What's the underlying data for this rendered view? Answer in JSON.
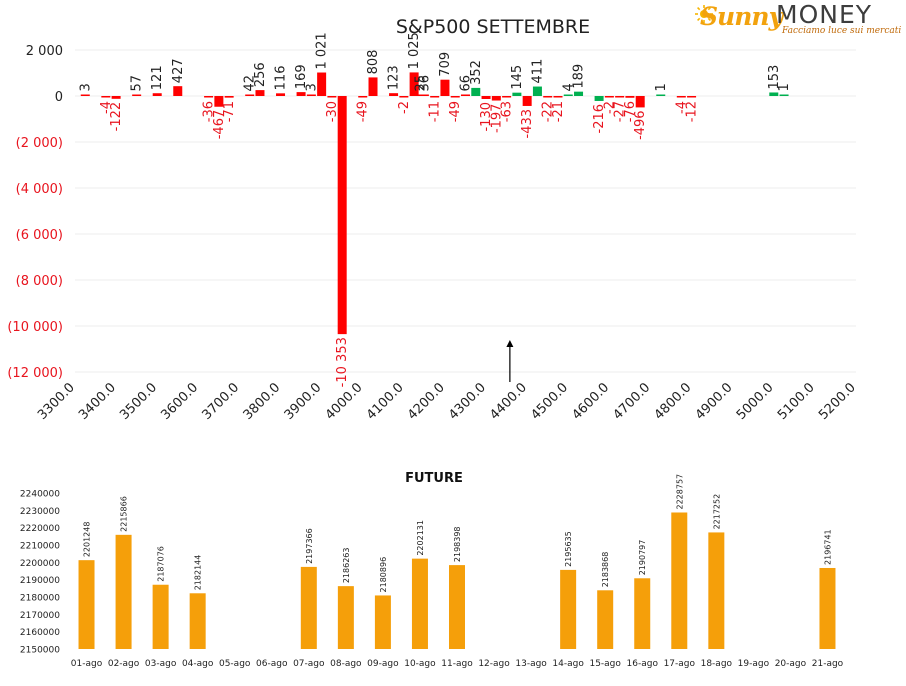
{
  "logo": {
    "brand_left": "Sunny",
    "brand_right": "MONEY",
    "tagline": "Facciamo luce sui mercati"
  },
  "colors": {
    "positive_top": "#ff0000",
    "negative_top": "#ff0000",
    "green_bar": "#00b050",
    "negative_label": "#e8141e",
    "future_bar": "#f59f0a",
    "text": "#222222"
  },
  "chart_data": [
    {
      "type": "bar",
      "title": "S&P500 SETTEMBRE",
      "xlabel": "",
      "ylabel": "",
      "ylim": [
        -12000,
        2000
      ],
      "yticks": [
        {
          "value": 2000,
          "label": "2 000"
        },
        {
          "value": 0,
          "label": "0"
        },
        {
          "value": -2000,
          "label": "(2 000)"
        },
        {
          "value": -4000,
          "label": "(4 000)"
        },
        {
          "value": -6000,
          "label": "(6 000)"
        },
        {
          "value": -8000,
          "label": "(8 000)"
        },
        {
          "value": -10000,
          "label": "(10 000)"
        },
        {
          "value": -12000,
          "label": "(12 000)"
        }
      ],
      "xlim": [
        3300,
        5200
      ],
      "xticks": [
        3300,
        3400,
        3500,
        3600,
        3700,
        3800,
        3900,
        4000,
        4100,
        4200,
        4300,
        4400,
        4500,
        4600,
        4700,
        4800,
        4900,
        5000,
        5100,
        5200
      ],
      "xtick_labels": [
        "3300.0",
        "3400.0",
        "3500.0",
        "3600.0",
        "3700.0",
        "3800.0",
        "3900.0",
        "4000.0",
        "4100.0",
        "4200.0",
        "4300.0",
        "4400.0",
        "4500.0",
        "4600.0",
        "4700.0",
        "4800.0",
        "4900.0",
        "5000.0",
        "5100.0",
        "5200.0"
      ],
      "grid": true,
      "annotation": "arrow at 4375 (current price marker)",
      "marker_x": 4375,
      "series": [
        {
          "values": [
            {
              "x": 3325,
              "y": 3,
              "label": "3"
            },
            {
              "x": 3375,
              "y": -4,
              "label": "-4"
            },
            {
              "x": 3400,
              "y": -122,
              "label": "-122"
            },
            {
              "x": 3450,
              "y": 57,
              "label": "57"
            },
            {
              "x": 3500,
              "y": 121,
              "label": "121"
            },
            {
              "x": 3550,
              "y": 427,
              "label": "427"
            },
            {
              "x": 3625,
              "y": -36,
              "label": "-36"
            },
            {
              "x": 3650,
              "y": -467,
              "label": "-467"
            },
            {
              "x": 3675,
              "y": -71,
              "label": "-71"
            },
            {
              "x": 3725,
              "y": 42,
              "label": "42"
            },
            {
              "x": 3750,
              "y": 256,
              "label": "256"
            },
            {
              "x": 3800,
              "y": 116,
              "label": "116"
            },
            {
              "x": 3850,
              "y": 169,
              "label": "169"
            },
            {
              "x": 3875,
              "y": 3,
              "label": "3"
            },
            {
              "x": 3900,
              "y": 1021,
              "label": "1 021"
            },
            {
              "x": 3925,
              "y": -30,
              "label": "-30"
            },
            {
              "x": 3950,
              "y": -10353,
              "label": "-10 353"
            },
            {
              "x": 4000,
              "y": -49,
              "label": "-49"
            },
            {
              "x": 4025,
              "y": 808,
              "label": "808"
            },
            {
              "x": 4075,
              "y": 123,
              "label": "123"
            },
            {
              "x": 4100,
              "y": -2,
              "label": "-2"
            },
            {
              "x": 4125,
              "y": 1025,
              "label": "1 025"
            },
            {
              "x": 4140,
              "y": 25,
              "label": "25"
            },
            {
              "x": 4150,
              "y": 36,
              "label": "36"
            },
            {
              "x": 4175,
              "y": -11,
              "label": "-11"
            },
            {
              "x": 4200,
              "y": 709,
              "label": "709"
            },
            {
              "x": 4225,
              "y": -49,
              "label": "-49"
            },
            {
              "x": 4250,
              "y": 66,
              "label": "66"
            },
            {
              "x": 4275,
              "y": 352,
              "label": "352"
            },
            {
              "x": 4300,
              "y": -130,
              "label": "-130"
            },
            {
              "x": 4325,
              "y": -197,
              "label": "-197"
            },
            {
              "x": 4350,
              "y": -63,
              "label": "-63"
            },
            {
              "x": 4375,
              "y": 145,
              "label": "145"
            },
            {
              "x": 4400,
              "y": -433,
              "label": "-433"
            },
            {
              "x": 4425,
              "y": 411,
              "label": "411"
            },
            {
              "x": 4450,
              "y": -22,
              "label": "-22"
            },
            {
              "x": 4475,
              "y": -21,
              "label": "-21"
            },
            {
              "x": 4500,
              "y": 4,
              "label": "4"
            },
            {
              "x": 4525,
              "y": 189,
              "label": "189"
            },
            {
              "x": 4575,
              "y": -216,
              "label": "-216"
            },
            {
              "x": 4600,
              "y": -2,
              "label": "-2"
            },
            {
              "x": 4625,
              "y": -27,
              "label": "-27"
            },
            {
              "x": 4650,
              "y": -76,
              "label": "-76"
            },
            {
              "x": 4675,
              "y": -496,
              "label": "-496"
            },
            {
              "x": 4725,
              "y": 1,
              "label": "1"
            },
            {
              "x": 4775,
              "y": -4,
              "label": "-4"
            },
            {
              "x": 4800,
              "y": -12,
              "label": "-12"
            },
            {
              "x": 5000,
              "y": 153,
              "label": "153"
            },
            {
              "x": 5025,
              "y": 1,
              "label": "1"
            }
          ]
        }
      ]
    },
    {
      "type": "bar",
      "title": "FUTURE",
      "xlabel": "",
      "ylabel": "",
      "ylim": [
        2150000,
        2240000
      ],
      "yticks": [
        2150000,
        2160000,
        2170000,
        2180000,
        2190000,
        2200000,
        2210000,
        2220000,
        2230000,
        2240000
      ],
      "grid": false,
      "categories": [
        "01-ago",
        "02-ago",
        "03-ago",
        "04-ago",
        "05-ago",
        "06-ago",
        "07-ago",
        "08-ago",
        "09-ago",
        "10-ago",
        "11-ago",
        "12-ago",
        "13-ago",
        "14-ago",
        "15-ago",
        "16-ago",
        "17-ago",
        "18-ago",
        "19-ago",
        "20-ago",
        "21-ago"
      ],
      "series": [
        {
          "values": [
            2201248,
            2215866,
            2187076,
            2182144,
            null,
            null,
            2197366,
            2186263,
            2180896,
            2202131,
            2198398,
            null,
            null,
            2195635,
            2183868,
            2190797,
            2228757,
            2217252,
            null,
            null,
            2196741
          ]
        }
      ]
    }
  ]
}
